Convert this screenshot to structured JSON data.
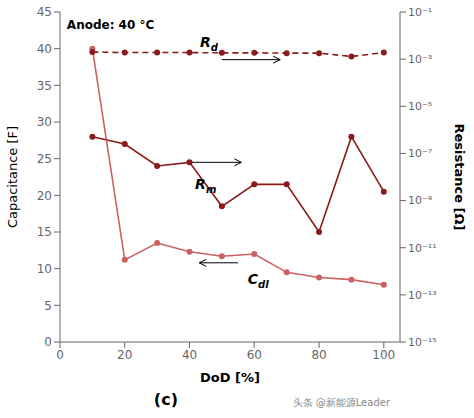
{
  "chart_data": {
    "type": "line",
    "title": "Anode: 40 °C",
    "subtitle": "(c)",
    "xlabel": "DoD [%]",
    "ylabel": "Capacitance [F]",
    "y2label": "Resistance [Ω]",
    "annotations": [
      "Rd",
      "Rm",
      "Cdl",
      "头条 @新能源Leader"
    ],
    "x": [
      10,
      20,
      30,
      40,
      50,
      60,
      70,
      80,
      90,
      100
    ],
    "series": [
      {
        "color": "#8B1A1A",
        "values": [
          28.0,
          27.0,
          24.0,
          24.5,
          18.5,
          21.5,
          21.5,
          15.0,
          28.0,
          20.5
        ],
        "marker": "o",
        "line_style": "solid"
      },
      {
        "color": "#CD6060",
        "values": [
          40.0,
          11.2,
          13.5,
          12.3,
          11.7,
          12.0,
          9.5,
          8.8,
          8.5,
          7.8
        ],
        "marker": "o",
        "line_style": "solid"
      },
      {
        "color": "#8B1A1A",
        "values": [
          0.002,
          0.0019,
          0.0019,
          0.0019,
          0.00185,
          0.00185,
          0.0018,
          0.0018,
          0.0013,
          0.0019
        ],
        "marker": "o",
        "line_style": "dashed",
        "axis": "y2"
      }
    ],
    "xlim": [
      0,
      105
    ],
    "xticks": [
      0,
      20,
      40,
      60,
      80,
      100
    ],
    "ylim": [
      0,
      45
    ],
    "yticks": [
      0,
      5,
      10,
      15,
      20,
      25,
      30,
      35,
      40,
      45
    ],
    "y2lim": [
      1e-15,
      0.1
    ],
    "y2ticks": [
      {
        "value": 0.1,
        "label": "10⁻¹"
      },
      {
        "value": 0.001,
        "label": "10⁻³"
      },
      {
        "value": 1e-05,
        "label": "10⁻⁵"
      },
      {
        "value": 1e-07,
        "label": "10⁻⁷"
      },
      {
        "value": 1e-09,
        "label": "10⁻⁹"
      },
      {
        "value": 1e-11,
        "label": "10⁻¹¹"
      },
      {
        "value": 1e-13,
        "label": "10⁻¹³"
      },
      {
        "value": 1e-15,
        "label": "10⁻¹⁵"
      }
    ],
    "log": "y2",
    "grid": false
  }
}
